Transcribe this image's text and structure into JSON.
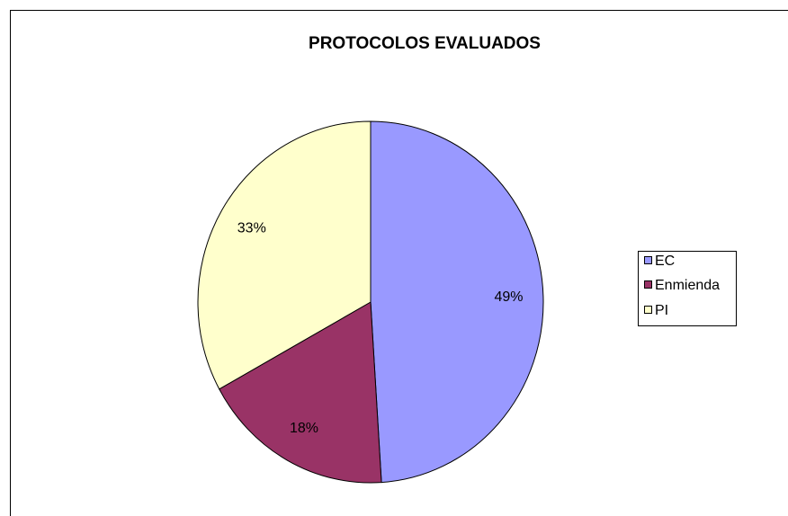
{
  "chart_data": {
    "type": "pie",
    "title": "PROTOCOLOS EVALUADOS",
    "categories": [
      "EC",
      "Enmienda",
      "PI"
    ],
    "values": [
      49,
      18,
      33
    ],
    "value_labels": [
      "49%",
      "18%",
      "33%"
    ],
    "colors": [
      "#9999ff",
      "#993366",
      "#ffffcc"
    ],
    "legend": "right"
  }
}
